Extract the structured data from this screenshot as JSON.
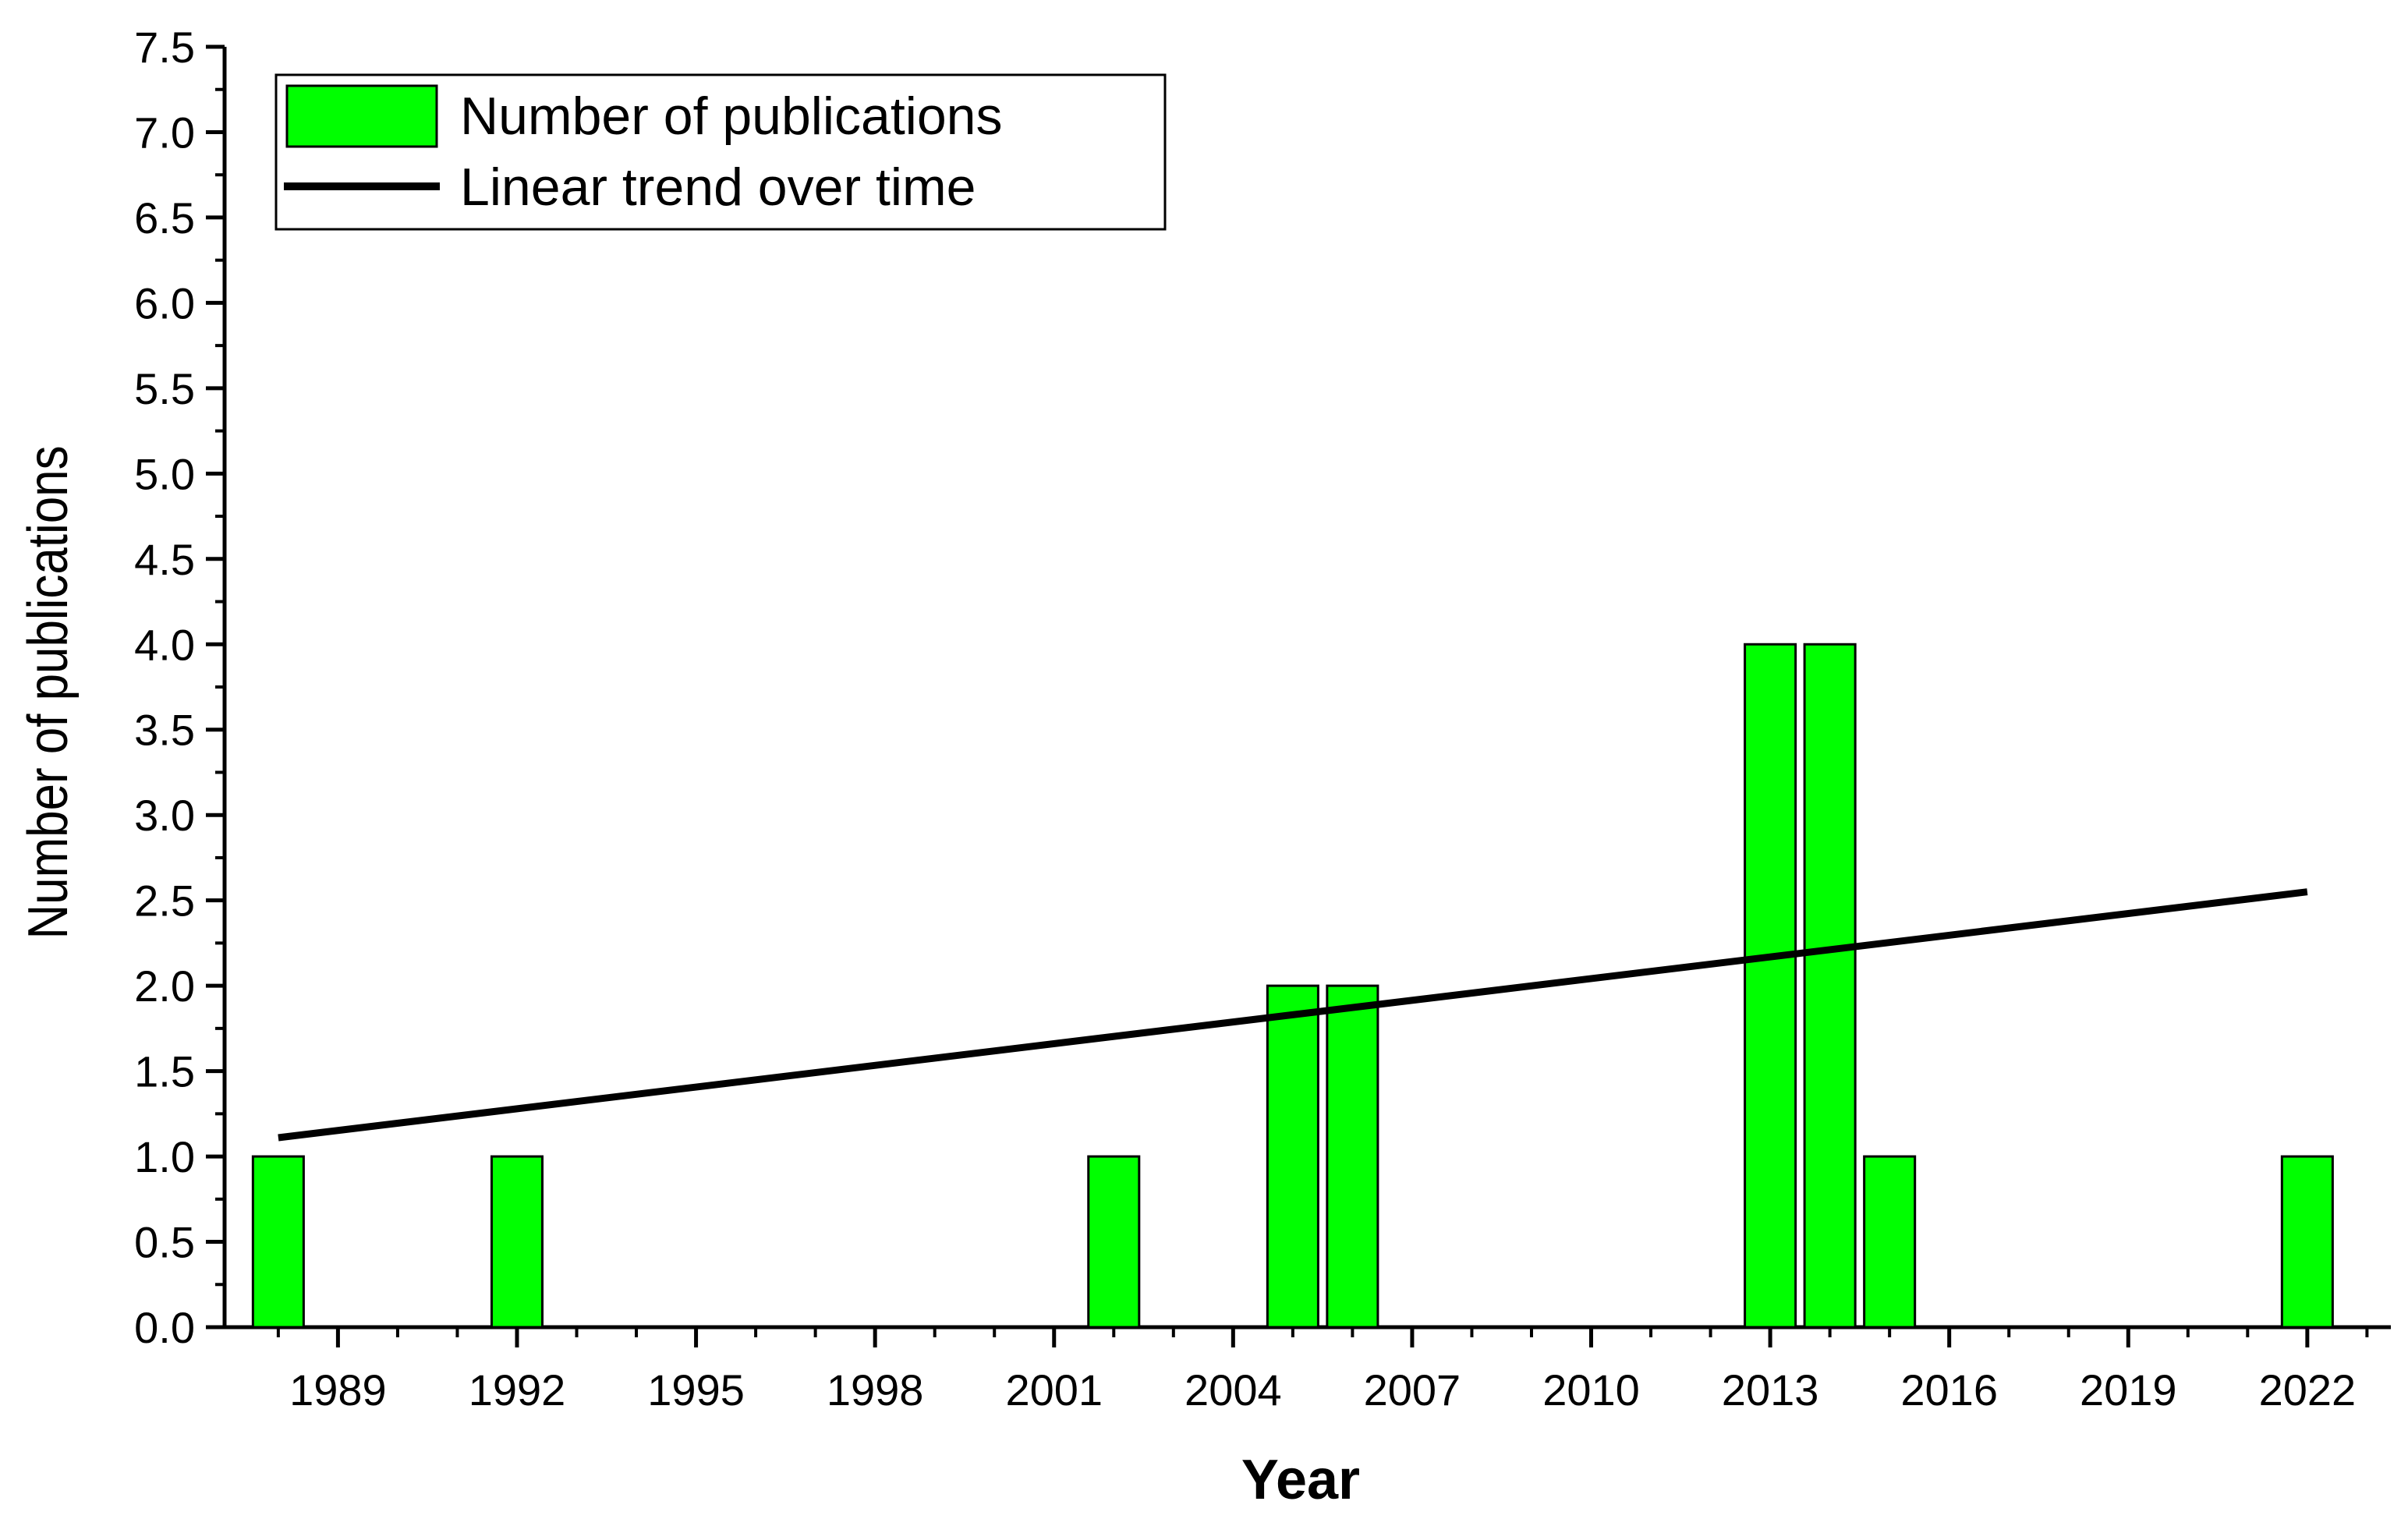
{
  "chart_data": {
    "type": "bar",
    "xlabel": "Year",
    "ylabel": "Number of publications",
    "ylim": [
      0,
      7.5
    ],
    "xlim": [
      1987.1,
      2023.4
    ],
    "y_ticks": [
      "0.0",
      "0.5",
      "1.0",
      "1.5",
      "2.0",
      "2.5",
      "3.0",
      "3.5",
      "4.0",
      "4.5",
      "5.0",
      "5.5",
      "6.0",
      "6.5",
      "7.0",
      "7.5"
    ],
    "x_ticks": [
      "1989",
      "1992",
      "1995",
      "1998",
      "2001",
      "2004",
      "2007",
      "2010",
      "2013",
      "2016",
      "2019",
      "2022"
    ],
    "grid": false,
    "legend_position": "top-left",
    "series": [
      {
        "name": "Number of publications",
        "type": "bar",
        "color": "#00ff00",
        "x": [
          1988,
          1992,
          2002,
          2005,
          2006,
          2013,
          2014,
          2015,
          2022
        ],
        "values": [
          1,
          1,
          1,
          2,
          2,
          4,
          4,
          1,
          1
        ]
      },
      {
        "name": "Linear trend over time",
        "type": "line",
        "color": "#000000",
        "x": [
          1988,
          2022
        ],
        "values": [
          1.11,
          2.55
        ]
      }
    ]
  }
}
